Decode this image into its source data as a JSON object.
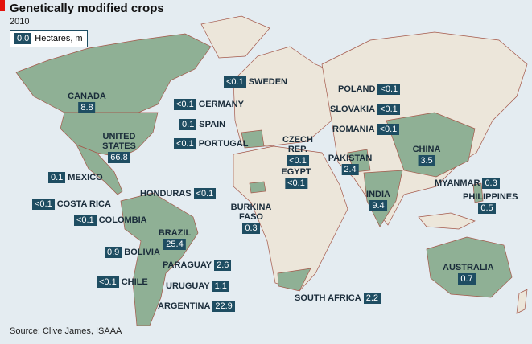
{
  "header": {
    "title": "Genetically modified crops",
    "subtitle": "2010",
    "legend": {
      "sample": "0.0",
      "label": "Hectares, m"
    }
  },
  "countries": [
    {
      "name": "CANADA",
      "value": 8.8
    },
    {
      "name": "UNITED STATES",
      "value": 66.8
    },
    {
      "name": "MEXICO",
      "value": 0.1
    },
    {
      "name": "COSTA RICA",
      "value": "<0.1"
    },
    {
      "name": "COLOMBIA",
      "value": "<0.1"
    },
    {
      "name": "HONDURAS",
      "value": "<0.1"
    },
    {
      "name": "BRAZIL",
      "value": 25.4
    },
    {
      "name": "BOLIVIA",
      "value": 0.9
    },
    {
      "name": "PARAGUAY",
      "value": 2.6
    },
    {
      "name": "CHILE",
      "value": "<0.1"
    },
    {
      "name": "URUGUAY",
      "value": 1.1
    },
    {
      "name": "ARGENTINA",
      "value": 22.9
    },
    {
      "name": "SWEDEN",
      "value": "<0.1"
    },
    {
      "name": "GERMANY",
      "value": "<0.1"
    },
    {
      "name": "SPAIN",
      "value": 0.1
    },
    {
      "name": "PORTUGAL",
      "value": "<0.1"
    },
    {
      "name": "POLAND",
      "value": "<0.1"
    },
    {
      "name": "SLOVAKIA",
      "value": "<0.1"
    },
    {
      "name": "ROMANIA",
      "value": "<0.1"
    },
    {
      "name": "CZECH REP.",
      "value": "<0.1"
    },
    {
      "name": "EGYPT",
      "value": "<0.1"
    },
    {
      "name": "BURKINA FASO",
      "value": 0.3
    },
    {
      "name": "PAKISTAN",
      "value": 2.4
    },
    {
      "name": "CHINA",
      "value": 3.5
    },
    {
      "name": "INDIA",
      "value": 9.4
    },
    {
      "name": "MYANMAR",
      "value": 0.3
    },
    {
      "name": "PHILIPPINES",
      "value": 0.5
    },
    {
      "name": "AUSTRALIA",
      "value": 0.7
    },
    {
      "name": "SOUTH AFRICA",
      "value": 2.2
    }
  ],
  "source": "Source: Clive James, ISAAA"
}
